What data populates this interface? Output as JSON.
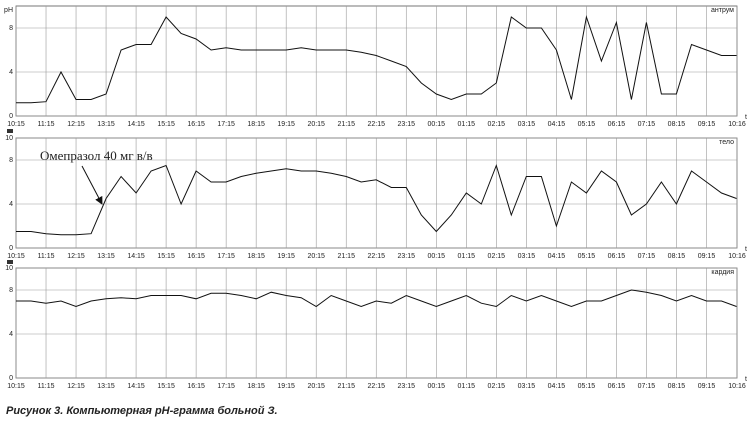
{
  "caption": "Рисунок 3. Компьютерная pH-грамма больной З.",
  "chart_data": [
    {
      "type": "line",
      "panel_label": "антрум",
      "y_label": "pH",
      "x_label": "t",
      "color": "#111",
      "grid": true,
      "xlim": [
        0,
        24.017
      ],
      "ylim": [
        0,
        10
      ],
      "yticks": [
        0,
        4,
        8
      ],
      "xticks": [
        {
          "value": 0,
          "label": "10:15"
        },
        {
          "value": 1,
          "label": "11:15"
        },
        {
          "value": 2,
          "label": "12:15"
        },
        {
          "value": 3,
          "label": "13:15"
        },
        {
          "value": 4,
          "label": "14:15"
        },
        {
          "value": 5,
          "label": "15:15"
        },
        {
          "value": 6,
          "label": "16:15"
        },
        {
          "value": 7,
          "label": "17:15"
        },
        {
          "value": 8,
          "label": "18:15"
        },
        {
          "value": 9,
          "label": "19:15"
        },
        {
          "value": 10,
          "label": "20:15"
        },
        {
          "value": 11,
          "label": "21:15"
        },
        {
          "value": 12,
          "label": "22:15"
        },
        {
          "value": 13,
          "label": "23:15"
        },
        {
          "value": 14,
          "label": "00:15"
        },
        {
          "value": 15,
          "label": "01:15"
        },
        {
          "value": 16,
          "label": "02:15"
        },
        {
          "value": 17,
          "label": "03:15"
        },
        {
          "value": 18,
          "label": "04:15"
        },
        {
          "value": 19,
          "label": "05:15"
        },
        {
          "value": 20,
          "label": "06:15"
        },
        {
          "value": 21,
          "label": "07:15"
        },
        {
          "value": 22,
          "label": "08:15"
        },
        {
          "value": 23,
          "label": "09:15"
        },
        {
          "value": 24.017,
          "label": "10:16"
        }
      ],
      "x": [
        0,
        0.5,
        1,
        1.5,
        2,
        2.5,
        3,
        3.5,
        4,
        4.5,
        5,
        5.5,
        6,
        6.5,
        7,
        7.5,
        8,
        8.5,
        9,
        9.5,
        10,
        10.5,
        11,
        11.5,
        12,
        12.5,
        13,
        13.5,
        14,
        14.5,
        15,
        15.5,
        16,
        16.5,
        17,
        17.5,
        18,
        18.5,
        19,
        19.5,
        20,
        20.5,
        21,
        21.5,
        22,
        22.5,
        23,
        23.5,
        24
      ],
      "values": [
        1.2,
        1.2,
        1.3,
        4,
        1.5,
        1.5,
        2,
        6,
        6.5,
        6.5,
        9,
        7.5,
        7,
        6,
        6.2,
        6,
        6,
        6,
        6,
        6.2,
        6,
        6,
        6,
        5.8,
        5.5,
        5,
        4.5,
        3,
        2,
        1.5,
        2,
        2,
        3,
        9,
        8,
        8,
        6,
        1.5,
        9,
        5,
        8.5,
        1.5,
        8.5,
        2,
        2,
        6.5,
        6,
        5.5,
        5.5
      ]
    },
    {
      "type": "line",
      "panel_label": "тело",
      "x_label": "t",
      "color": "#111",
      "grid": true,
      "annotation": "Омепразол 40 мг в/в",
      "xlim": [
        0,
        24.017
      ],
      "ylim": [
        0,
        10
      ],
      "yticks": [
        0,
        4,
        8,
        10
      ],
      "xticks": [
        {
          "value": 0,
          "label": "10:15"
        },
        {
          "value": 1,
          "label": "11:15"
        },
        {
          "value": 2,
          "label": "12:15"
        },
        {
          "value": 3,
          "label": "13:15"
        },
        {
          "value": 4,
          "label": "14:15"
        },
        {
          "value": 5,
          "label": "15:15"
        },
        {
          "value": 6,
          "label": "16:15"
        },
        {
          "value": 7,
          "label": "17:15"
        },
        {
          "value": 8,
          "label": "18:15"
        },
        {
          "value": 9,
          "label": "19:15"
        },
        {
          "value": 10,
          "label": "20:15"
        },
        {
          "value": 11,
          "label": "21:15"
        },
        {
          "value": 12,
          "label": "22:15"
        },
        {
          "value": 13,
          "label": "23:15"
        },
        {
          "value": 14,
          "label": "00:15"
        },
        {
          "value": 15,
          "label": "01:15"
        },
        {
          "value": 16,
          "label": "02:15"
        },
        {
          "value": 17,
          "label": "03:15"
        },
        {
          "value": 18,
          "label": "04:15"
        },
        {
          "value": 19,
          "label": "05:15"
        },
        {
          "value": 20,
          "label": "06:15"
        },
        {
          "value": 21,
          "label": "07:15"
        },
        {
          "value": 22,
          "label": "08:15"
        },
        {
          "value": 23,
          "label": "09:15"
        },
        {
          "value": 24.017,
          "label": "10:16"
        }
      ],
      "x": [
        0,
        0.5,
        1,
        1.5,
        2,
        2.5,
        3,
        3.5,
        4,
        4.5,
        5,
        5.5,
        6,
        6.5,
        7,
        7.5,
        8,
        8.5,
        9,
        9.5,
        10,
        10.5,
        11,
        11.5,
        12,
        12.5,
        13,
        13.5,
        14,
        14.5,
        15,
        15.5,
        16,
        16.5,
        17,
        17.5,
        18,
        18.5,
        19,
        19.5,
        20,
        20.5,
        21,
        21.5,
        22,
        22.5,
        23,
        23.5,
        24
      ],
      "values": [
        1.5,
        1.5,
        1.3,
        1.2,
        1.2,
        1.3,
        4.5,
        6.5,
        5,
        7,
        7.5,
        4,
        7,
        6,
        6,
        6.5,
        6.8,
        7,
        7.2,
        7,
        7,
        6.8,
        6.5,
        6,
        6.2,
        5.5,
        5.5,
        3,
        1.5,
        3,
        5,
        4,
        7.5,
        3,
        6.5,
        6.5,
        2,
        6,
        5,
        7,
        6,
        3,
        4,
        6,
        4,
        7,
        6,
        5,
        4.5
      ]
    },
    {
      "type": "line",
      "panel_label": "кардия",
      "x_label": "t",
      "color": "#111",
      "grid": true,
      "xlim": [
        0,
        24.017
      ],
      "ylim": [
        0,
        10
      ],
      "yticks": [
        0,
        4,
        8,
        10
      ],
      "xticks": [
        {
          "value": 0,
          "label": "10:15"
        },
        {
          "value": 1,
          "label": "11:15"
        },
        {
          "value": 2,
          "label": "12:15"
        },
        {
          "value": 3,
          "label": "13:15"
        },
        {
          "value": 4,
          "label": "14:15"
        },
        {
          "value": 5,
          "label": "15:15"
        },
        {
          "value": 6,
          "label": "16:15"
        },
        {
          "value": 7,
          "label": "17:15"
        },
        {
          "value": 8,
          "label": "18:15"
        },
        {
          "value": 9,
          "label": "19:15"
        },
        {
          "value": 10,
          "label": "20:15"
        },
        {
          "value": 11,
          "label": "21:15"
        },
        {
          "value": 12,
          "label": "22:15"
        },
        {
          "value": 13,
          "label": "23:15"
        },
        {
          "value": 14,
          "label": "00:15"
        },
        {
          "value": 15,
          "label": "01:15"
        },
        {
          "value": 16,
          "label": "02:15"
        },
        {
          "value": 17,
          "label": "03:15"
        },
        {
          "value": 18,
          "label": "04:15"
        },
        {
          "value": 19,
          "label": "05:15"
        },
        {
          "value": 20,
          "label": "06:15"
        },
        {
          "value": 21,
          "label": "07:15"
        },
        {
          "value": 22,
          "label": "08:15"
        },
        {
          "value": 23,
          "label": "09:15"
        },
        {
          "value": 24.017,
          "label": "10:16"
        }
      ],
      "x": [
        0,
        0.5,
        1,
        1.5,
        2,
        2.5,
        3,
        3.5,
        4,
        4.5,
        5,
        5.5,
        6,
        6.5,
        7,
        7.5,
        8,
        8.5,
        9,
        9.5,
        10,
        10.5,
        11,
        11.5,
        12,
        12.5,
        13,
        13.5,
        14,
        14.5,
        15,
        15.5,
        16,
        16.5,
        17,
        17.5,
        18,
        18.5,
        19,
        19.5,
        20,
        20.5,
        21,
        21.5,
        22,
        22.5,
        23,
        23.5,
        24
      ],
      "values": [
        7,
        7,
        6.8,
        7,
        6.5,
        7,
        7.2,
        7.3,
        7.2,
        7.5,
        7.5,
        7.5,
        7.2,
        7.7,
        7.7,
        7.5,
        7.2,
        7.8,
        7.5,
        7.3,
        6.5,
        7.5,
        7,
        6.5,
        7,
        6.8,
        7.5,
        7,
        6.5,
        7,
        7.5,
        6.8,
        6.5,
        7.5,
        7,
        7.5,
        7,
        6.5,
        7,
        7,
        7.5,
        8,
        7.8,
        7.5,
        7,
        7.5,
        7,
        7,
        6.5
      ]
    }
  ]
}
